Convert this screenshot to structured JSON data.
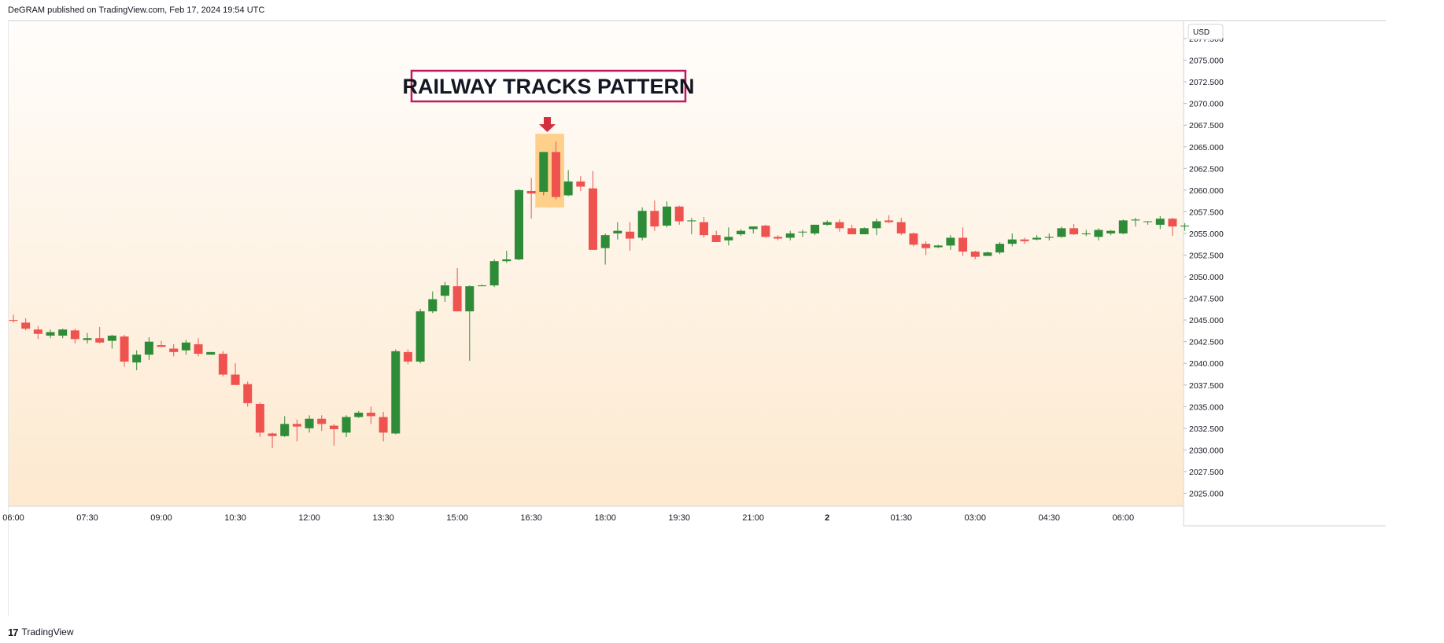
{
  "header": {
    "published": "DeGRAM published on TradingView.com, Feb 17, 2024 19:54 UTC"
  },
  "footer": {
    "logo": "17",
    "brand": "TradingView"
  },
  "currency": "USD",
  "annotation": {
    "text": "RAILWAY TRACKS PATTERN"
  },
  "colors": {
    "bull": "#2e8b37",
    "bear": "#ef5350",
    "annotation_border": "#c2185b",
    "annotation_text": "#131722",
    "arrow": "#d32f3f",
    "highlight": "#ffc36a",
    "bg_top": "#fffdfb",
    "bg_bottom": "#fde9cf"
  },
  "chart_data": {
    "type": "candlestick",
    "y_axis": {
      "min": 2023.5,
      "max": 2079.5,
      "side": "right",
      "ticks": [
        "2077.500",
        "2075.000",
        "2072.500",
        "2070.000",
        "2067.500",
        "2065.000",
        "2062.500",
        "2060.000",
        "2057.500",
        "2055.000",
        "2052.500",
        "2050.000",
        "2047.500",
        "2045.000",
        "2042.500",
        "2040.000",
        "2037.500",
        "2035.000",
        "2032.500",
        "2030.000",
        "2027.500",
        "2025.000"
      ]
    },
    "x_axis": {
      "labels": [
        "06:00",
        "07:30",
        "09:00",
        "10:30",
        "12:00",
        "13:30",
        "15:00",
        "16:30",
        "18:00",
        "19:30",
        "21:00",
        "2",
        "01:30",
        "03:00",
        "04:30",
        "06:00"
      ],
      "label_candle_index": [
        0,
        6,
        12,
        18,
        24,
        30,
        36,
        42,
        48,
        54,
        60,
        66,
        72,
        78,
        84,
        90
      ]
    },
    "candles": [
      [
        2045.0,
        2045.6,
        2044.7,
        2044.9
      ],
      [
        2044.7,
        2045.2,
        2043.8,
        2044.0
      ],
      [
        2043.9,
        2044.3,
        2042.8,
        2043.4
      ],
      [
        2043.2,
        2043.9,
        2042.9,
        2043.6
      ],
      [
        2043.2,
        2044.0,
        2042.9,
        2043.9
      ],
      [
        2043.8,
        2044.0,
        2042.3,
        2042.8
      ],
      [
        2042.7,
        2043.5,
        2042.3,
        2042.9
      ],
      [
        2042.9,
        2044.2,
        2042.3,
        2042.4
      ],
      [
        2042.6,
        2043.3,
        2041.7,
        2043.2
      ],
      [
        2043.1,
        2043.3,
        2039.6,
        2040.2
      ],
      [
        2040.1,
        2041.5,
        2039.2,
        2041.0
      ],
      [
        2041.0,
        2043.0,
        2040.4,
        2042.5
      ],
      [
        2042.1,
        2042.6,
        2041.9,
        2041.9
      ],
      [
        2041.7,
        2042.2,
        2040.8,
        2041.3
      ],
      [
        2041.5,
        2042.7,
        2041.0,
        2042.4
      ],
      [
        2042.2,
        2042.9,
        2040.8,
        2041.1
      ],
      [
        2041.0,
        2041.3,
        2041.0,
        2041.3
      ],
      [
        2041.1,
        2041.4,
        2038.5,
        2038.7
      ],
      [
        2038.7,
        2040.0,
        2037.5,
        2037.5
      ],
      [
        2037.6,
        2037.9,
        2035.0,
        2035.4
      ],
      [
        2035.3,
        2035.5,
        2031.5,
        2032.0
      ],
      [
        2031.9,
        2032.0,
        2030.2,
        2031.6
      ],
      [
        2031.6,
        2033.9,
        2031.5,
        2033.0
      ],
      [
        2033.0,
        2033.5,
        2031.0,
        2032.7
      ],
      [
        2032.5,
        2034.0,
        2032.0,
        2033.6
      ],
      [
        2033.6,
        2034.0,
        2032.2,
        2033.0
      ],
      [
        2032.8,
        2033.0,
        2030.5,
        2032.4
      ],
      [
        2032.0,
        2034.0,
        2031.5,
        2033.8
      ],
      [
        2033.8,
        2034.5,
        2033.7,
        2034.3
      ],
      [
        2034.3,
        2035.0,
        2033.0,
        2033.9
      ],
      [
        2033.8,
        2034.4,
        2031.0,
        2032.0
      ],
      [
        2031.9,
        2041.6,
        2031.8,
        2041.4
      ],
      [
        2041.3,
        2041.6,
        2039.9,
        2040.2
      ],
      [
        2040.2,
        2046.3,
        2040.0,
        2046.0
      ],
      [
        2046.0,
        2048.3,
        2045.8,
        2047.4
      ],
      [
        2047.8,
        2049.4,
        2047.1,
        2049.0
      ],
      [
        2048.9,
        2051.0,
        2046.0,
        2046.0
      ],
      [
        2046.0,
        2049.0,
        2040.3,
        2048.9
      ],
      [
        2048.9,
        2049.1,
        2049.0,
        2049.0
      ],
      [
        2049.0,
        2052.0,
        2048.8,
        2051.8
      ],
      [
        2051.8,
        2053.0,
        2051.6,
        2052.0
      ],
      [
        2052.0,
        2060.1,
        2051.9,
        2060.0
      ],
      [
        2059.9,
        2061.4,
        2056.7,
        2059.6
      ],
      [
        2059.8,
        2064.4,
        2059.4,
        2064.4
      ],
      [
        2064.4,
        2065.6,
        2058.9,
        2059.2
      ],
      [
        2059.4,
        2062.3,
        2059.3,
        2061.0
      ],
      [
        2061.0,
        2061.6,
        2059.9,
        2060.4
      ],
      [
        2060.2,
        2062.2,
        2053.1,
        2053.1
      ],
      [
        2053.3,
        2055.0,
        2051.4,
        2054.8
      ],
      [
        2055.0,
        2056.3,
        2054.3,
        2055.3
      ],
      [
        2055.2,
        2056.3,
        2053.0,
        2054.4
      ],
      [
        2054.5,
        2058.0,
        2054.2,
        2057.6
      ],
      [
        2057.6,
        2058.8,
        2055.3,
        2055.8
      ],
      [
        2055.9,
        2058.7,
        2055.7,
        2058.1
      ],
      [
        2058.1,
        2058.2,
        2056.0,
        2056.4
      ],
      [
        2056.4,
        2056.8,
        2054.9,
        2056.5
      ],
      [
        2056.3,
        2056.9,
        2054.5,
        2054.8
      ],
      [
        2054.8,
        2055.3,
        2054.0,
        2054.0
      ],
      [
        2054.2,
        2055.7,
        2053.6,
        2054.6
      ],
      [
        2054.9,
        2055.5,
        2054.7,
        2055.3
      ],
      [
        2055.5,
        2055.8,
        2055.0,
        2055.8
      ],
      [
        2055.9,
        2056.0,
        2054.5,
        2054.6
      ],
      [
        2054.6,
        2054.8,
        2054.2,
        2054.4
      ],
      [
        2054.5,
        2055.3,
        2054.2,
        2055.0
      ],
      [
        2055.2,
        2055.4,
        2054.6,
        2055.2
      ],
      [
        2055.0,
        2056.0,
        2054.8,
        2056.0
      ],
      [
        2056.0,
        2056.5,
        2055.9,
        2056.3
      ],
      [
        2056.3,
        2056.6,
        2055.2,
        2055.6
      ],
      [
        2055.6,
        2056.0,
        2054.9,
        2054.9
      ],
      [
        2054.9,
        2055.7,
        2054.9,
        2055.6
      ],
      [
        2055.6,
        2056.7,
        2054.8,
        2056.4
      ],
      [
        2056.5,
        2057.1,
        2056.2,
        2056.3
      ],
      [
        2056.3,
        2056.8,
        2054.8,
        2055.0
      ],
      [
        2055.0,
        2055.1,
        2053.5,
        2053.7
      ],
      [
        2053.8,
        2054.1,
        2052.5,
        2053.3
      ],
      [
        2053.4,
        2053.7,
        2053.3,
        2053.6
      ],
      [
        2053.6,
        2054.8,
        2053.1,
        2054.5
      ],
      [
        2054.5,
        2055.7,
        2052.4,
        2052.9
      ],
      [
        2052.9,
        2053.0,
        2052.0,
        2052.3
      ],
      [
        2052.4,
        2052.9,
        2052.4,
        2052.8
      ],
      [
        2052.8,
        2054.0,
        2052.6,
        2053.8
      ],
      [
        2053.8,
        2055.0,
        2053.5,
        2054.3
      ],
      [
        2054.3,
        2054.5,
        2053.8,
        2054.1
      ],
      [
        2054.3,
        2054.8,
        2054.2,
        2054.5
      ],
      [
        2054.5,
        2055.0,
        2054.2,
        2054.6
      ],
      [
        2054.6,
        2055.8,
        2054.5,
        2055.6
      ],
      [
        2055.6,
        2056.1,
        2054.8,
        2054.9
      ],
      [
        2054.9,
        2055.4,
        2054.7,
        2055.0
      ],
      [
        2054.6,
        2055.6,
        2054.2,
        2055.4
      ],
      [
        2055.0,
        2055.4,
        2054.8,
        2055.3
      ],
      [
        2055.0,
        2056.6,
        2054.9,
        2056.5
      ],
      [
        2056.5,
        2056.8,
        2055.8,
        2056.6
      ],
      [
        2056.4,
        2056.4,
        2056.0,
        2056.4
      ],
      [
        2056.0,
        2057.0,
        2055.5,
        2056.7
      ],
      [
        2056.7,
        2056.8,
        2054.7,
        2055.8
      ],
      [
        2055.8,
        2056.2,
        2055.3,
        2055.9
      ]
    ],
    "highlight_candles": [
      43,
      44
    ]
  }
}
